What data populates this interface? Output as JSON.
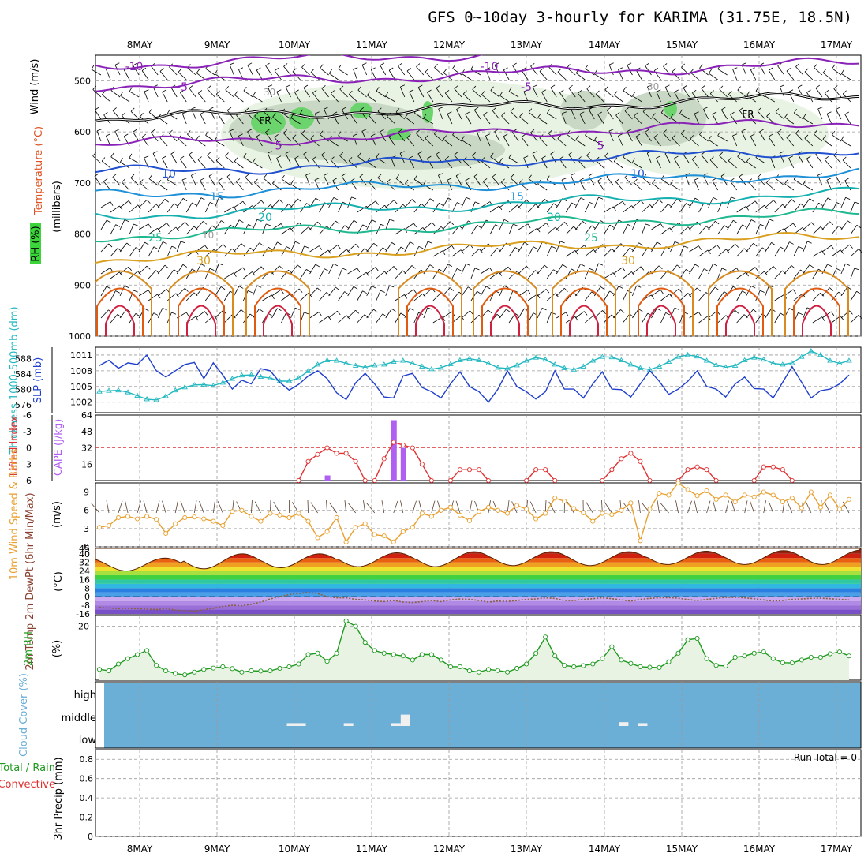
{
  "title": "GFS 0~10day 3-hourly for KARIMA (31.75E, 18.5N)",
  "colors": {
    "slp": "#1f3fcc",
    "thickness": "#22b8c0",
    "lifted_index": "#e03030",
    "cape": "#b060f0",
    "wind_speed": "#e8a030",
    "rh2m": "#1e9a1e",
    "cloud": "#6baed6",
    "temp": "#d03010",
    "dewpt": "#8a6040"
  },
  "chart_data": [
    {
      "type": "line",
      "panel": "upper-air",
      "ylabel_parts": [
        "RH (%)",
        "Temperature (°C)",
        "Wind (m/s)"
      ],
      "ylabel_units": "(millibars)",
      "y_ticks": [
        500,
        600,
        700,
        800,
        900,
        1000
      ],
      "ylim": [
        1000,
        450
      ],
      "x_ticks": [
        "8MAY",
        "9MAY",
        "10MAY",
        "11MAY",
        "12MAY",
        "13MAY",
        "14MAY",
        "15MAY",
        "16MAY",
        "17MAY"
      ],
      "isotherms": [
        {
          "label": "-10",
          "color": "#8a22b8",
          "level_mb": 470
        },
        {
          "label": "-5",
          "color": "#8a22b8",
          "level_mb": 510
        },
        {
          "label": "0",
          "color": "#000000",
          "marker": "FR",
          "level_mb": 575
        },
        {
          "label": "5",
          "color": "#8a22b8",
          "level_mb": 625
        },
        {
          "label": "10",
          "color": "#2050d0",
          "level_mb": 680
        },
        {
          "label": "15",
          "color": "#1e90d8",
          "level_mb": 725
        },
        {
          "label": "20",
          "color": "#14b0b0",
          "level_mb": 765
        },
        {
          "label": "25",
          "color": "#20b890",
          "level_mb": 805
        },
        {
          "label": "30",
          "color": "#d9a020",
          "level_mb": 850
        }
      ],
      "rh_labels": [
        "10",
        "30"
      ]
    },
    {
      "type": "line",
      "panel": "slp-thickness",
      "series": [
        {
          "name": "SLP (mb)",
          "axis": "right-inner",
          "y_ticks": [
            1002,
            1005,
            1008,
            1011
          ],
          "values": [
            1009,
            1010,
            1008.5,
            1009.5,
            1009.2,
            1011,
            1008,
            1006.8,
            1008,
            1009.2,
            1009.6,
            1006.5,
            1009.5,
            1007.2,
            1004.5,
            1006.2,
            1005.5,
            1008.4,
            1008,
            1005.8,
            1004.3,
            1005.4,
            1007,
            1008,
            1006.5,
            1003.8,
            1002.5,
            1005.7,
            1007.5,
            1005.5,
            1003,
            1002.8,
            1007,
            1007.5,
            1004.8,
            1004,
            1002.8,
            1005.5,
            1007.8,
            1005,
            1004,
            1002,
            1004.5,
            1008,
            1005,
            1004,
            1002.6,
            1004,
            1008,
            1004.5,
            1004.5,
            1002.8,
            1005.5,
            1007.8,
            1004.5,
            1004.4,
            1003,
            1005.5,
            1008,
            1006,
            1003.5,
            1004.5,
            1006,
            1008,
            1005,
            1004.5,
            1003,
            1005.5,
            1006.8,
            1004.6,
            1004.5,
            1002.8,
            1005.8,
            1008.8,
            1005.8,
            1002.8,
            1004.2,
            1004.5,
            1005.5,
            1007.2
          ]
        },
        {
          "name": "Thickness 1000-500mb (dm)",
          "axis": "left",
          "y_ticks": [
            576,
            580,
            584,
            588
          ],
          "values": [
            579.5,
            579.7,
            579.8,
            579.3,
            578.4,
            577.5,
            577.3,
            578.3,
            579.8,
            580.6,
            581.2,
            581.3,
            581.0,
            581.8,
            582.8,
            583.7,
            583.8,
            583.3,
            583.0,
            582.2,
            582.2,
            583.0,
            584.8,
            586.5,
            587.6,
            587.5,
            586.8,
            586.2,
            585.8,
            586.3,
            586.5,
            587.2,
            587.5,
            586.8,
            586.0,
            585.3,
            585.7,
            586.6,
            587.6,
            588.0,
            587.6,
            586.8,
            585.7,
            585.5,
            586.3,
            587.5,
            588.3,
            587.8,
            586.5,
            585.6,
            585.2,
            586.0,
            587.5,
            588.5,
            588.4,
            587.6,
            586.5,
            585.6,
            585.2,
            586.0,
            587.2,
            588.5,
            589.0,
            588.6,
            587.5,
            586.4,
            585.8,
            586.2,
            587.6,
            588.3,
            587.8,
            586.8,
            586.5,
            586.9,
            588.5,
            590.0,
            589.0,
            587.5,
            586.8,
            587.5
          ]
        }
      ]
    },
    {
      "type": "line",
      "panel": "lifted-index-cape",
      "series": [
        {
          "name": "Lifted Index",
          "axis": "left",
          "y_ticks": [
            -6,
            -3,
            0,
            3,
            6
          ],
          "y_tick_labels": [
            "-6",
            "-3",
            "0",
            "3",
            "6"
          ],
          "segments": [
            {
              "start": 21,
              "values": [
                6,
                2.5,
                1.2,
                0,
                1,
                1,
                2.5,
                6
              ]
            },
            {
              "start": 29,
              "values": [
                6,
                2,
                -1,
                -0.5,
                0,
                3,
                6
              ]
            },
            {
              "start": 37,
              "values": [
                6,
                4,
                4,
                4,
                6
              ]
            },
            {
              "start": 45,
              "values": [
                6,
                4,
                4,
                6
              ]
            },
            {
              "start": 53,
              "values": [
                6,
                4,
                2,
                1,
                2.5,
                6
              ]
            },
            {
              "start": 61,
              "values": [
                6,
                4,
                3.5,
                4,
                6
              ]
            },
            {
              "start": 69,
              "values": [
                6,
                3.5,
                3.5,
                4,
                6
              ]
            }
          ]
        },
        {
          "name": "CAPE (J/kg)",
          "axis": "right-inner",
          "y_ticks": [
            16,
            32,
            48,
            64
          ],
          "bars": [
            {
              "index": 24,
              "value": 5
            },
            {
              "index": 31,
              "value": 59
            },
            {
              "index": 32,
              "value": 32
            }
          ]
        }
      ]
    },
    {
      "type": "line",
      "panel": "wind10m",
      "ylabel": "10m Wind Speed & Barbs",
      "yunits": "(m/s)",
      "y_ticks": [
        0,
        3,
        6,
        9
      ],
      "ylim": [
        0,
        10.5
      ],
      "values": [
        3.2,
        3.5,
        4.8,
        5,
        4.6,
        5,
        4.5,
        2.2,
        3.8,
        4.8,
        4.9,
        4.6,
        4.2,
        3.5,
        5.8,
        6,
        5,
        4.2,
        5.5,
        5.2,
        4.8,
        5.5,
        4.2,
        1.5,
        2.5,
        4.8,
        0.8,
        3.2,
        3.8,
        2,
        1.8,
        0.8,
        2.5,
        3.2,
        5.5,
        5,
        6,
        6.5,
        5.2,
        4.3,
        5.8,
        6.5,
        6,
        5.5,
        6.8,
        6.2,
        4.6,
        5.5,
        8,
        7.5,
        6.3,
        5.6,
        4.2,
        5.5,
        5.3,
        6,
        7.2,
        1,
        6.2,
        8.8,
        8.5,
        10.5,
        9.4,
        8.4,
        9.2,
        7.8,
        8.5,
        7.4,
        8.5,
        8.2,
        9,
        8.5,
        7.4,
        8,
        6.4,
        9,
        6.5,
        8.5,
        6.2,
        7.8
      ]
    },
    {
      "type": "area",
      "panel": "temp2m",
      "ylabel": "2m Temp 2m DewPt (6hr Min/Max)",
      "yunits": "(°C)",
      "y_ticks": [
        -16,
        -8,
        0,
        8,
        16,
        24,
        32,
        40,
        45
      ],
      "y_tick_labels": [
        "-16",
        "-8",
        "0",
        "8",
        "16",
        "24",
        "32",
        "40",
        "45"
      ],
      "ylim": [
        -16,
        45
      ],
      "temp_max": [
        36,
        40,
        40,
        41,
        42,
        42,
        42,
        42.5,
        43,
        43.5
      ],
      "temp_min": [
        24,
        26,
        27,
        28,
        28,
        29,
        29,
        30,
        30,
        30
      ],
      "dewpt_values": [
        -10,
        -10.5,
        -11,
        -11,
        -11,
        -11.5,
        -12,
        -11,
        -12.5,
        -13,
        -13.5,
        -12,
        -10.8,
        -9,
        -8,
        -8.4,
        -7,
        -5,
        -2,
        0,
        2,
        3,
        4,
        3,
        0,
        -1,
        -1,
        -2.5,
        -3,
        -4,
        -4.5,
        -3.5,
        -5,
        -5.5,
        -4.5,
        -3.5,
        -4.5,
        -3,
        -2,
        -2.5,
        -3.5,
        -5,
        -4,
        -4.4,
        -3.5,
        -2.5,
        -2,
        -1,
        -1.5,
        -3.5,
        -3.6,
        -2.5,
        -1.8,
        -1,
        -1.8,
        -3,
        -4,
        -2.5,
        -1.5,
        -1,
        -0.8,
        -1.4,
        -2.6,
        -3.6,
        -2.5,
        -1.5,
        -0.5,
        -0.5,
        -1,
        -1.8,
        -3,
        -4,
        -3.5,
        -2.4,
        -2,
        -1.5,
        -1.3,
        -1.8,
        -2.5,
        -3
      ]
    },
    {
      "type": "line",
      "panel": "rh2m",
      "ylabel": "2m RH",
      "yunits": "(%)",
      "y_ticks": [
        20
      ],
      "ylim": [
        0,
        22
      ],
      "values": [
        4,
        3.5,
        6,
        8,
        9.5,
        11,
        5.5,
        3.5,
        2.5,
        2,
        3,
        4,
        4.5,
        5,
        4.3,
        3,
        3.5,
        3.4,
        3.5,
        4.4,
        5,
        6,
        9.5,
        10,
        7,
        10,
        22,
        20,
        14,
        11,
        10,
        9.5,
        9,
        7.5,
        9.5,
        9.5,
        7.5,
        5,
        5,
        3.5,
        3,
        4,
        3.6,
        3,
        4.4,
        6,
        10,
        16,
        9,
        5.5,
        5,
        5.4,
        6,
        8,
        12.4,
        7.5,
        6.2,
        5,
        4.8,
        4.7,
        6.8,
        10,
        15,
        15.5,
        8,
        5.5,
        5.3,
        8.5,
        9,
        10,
        10.5,
        8,
        6.5,
        6.4,
        7.5,
        8.5,
        8.5,
        9.8,
        10.5,
        9
      ]
    },
    {
      "type": "bar",
      "panel": "cloud-cover",
      "ylabel": "Cloud Cover (%)",
      "categories": [
        "high",
        "middle",
        "low"
      ],
      "blocks": [
        {
          "layer": "middle",
          "start": 20,
          "end": 22,
          "level": 0.15
        },
        {
          "layer": "middle",
          "start": 26,
          "end": 27,
          "level": 0.15
        },
        {
          "layer": "middle",
          "start": 31,
          "end": 32,
          "level": 0.15
        },
        {
          "layer": "middle",
          "start": 32,
          "end": 33,
          "level": 0.6
        },
        {
          "layer": "middle",
          "start": 55,
          "end": 56,
          "level": 0.2
        },
        {
          "layer": "middle",
          "start": 57,
          "end": 58,
          "level": 0.15
        }
      ]
    },
    {
      "type": "bar",
      "panel": "precip",
      "ylabel": "3hr Precip (mm)",
      "legend": [
        "Total / Rain",
        "Convective"
      ],
      "run_total_label": "Run Total = 0",
      "y_ticks": [
        0,
        0.2,
        0.4,
        0.6,
        0.8
      ],
      "y_tick_labels": [
        "0",
        "0.2",
        "0.4",
        "0.6",
        "0.8"
      ],
      "ylim": [
        0,
        0.9
      ],
      "values": []
    }
  ]
}
